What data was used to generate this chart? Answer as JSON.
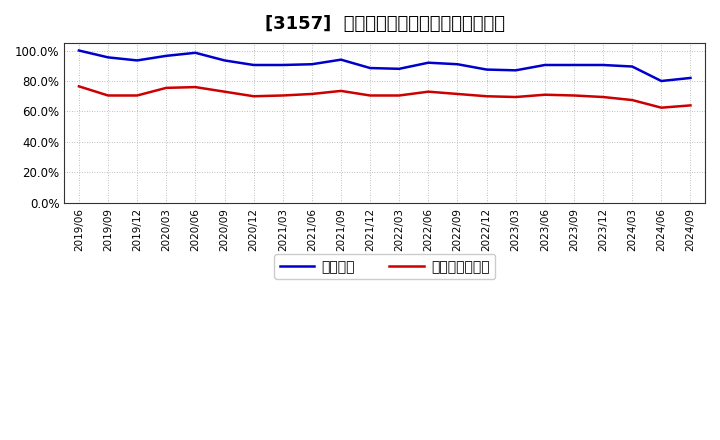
{
  "title": "[3157]  固定比率、固定長期適合率の推移",
  "x_labels": [
    "2019/06",
    "2019/09",
    "2019/12",
    "2020/03",
    "2020/06",
    "2020/09",
    "2020/12",
    "2021/03",
    "2021/06",
    "2021/09",
    "2021/12",
    "2022/03",
    "2022/06",
    "2022/09",
    "2022/12",
    "2023/03",
    "2023/06",
    "2023/09",
    "2023/12",
    "2024/03",
    "2024/06",
    "2024/09"
  ],
  "fixed_ratio": [
    100.0,
    95.5,
    93.5,
    96.5,
    98.5,
    93.5,
    90.5,
    90.5,
    91.0,
    94.0,
    88.5,
    88.0,
    92.0,
    91.0,
    87.5,
    87.0,
    90.5,
    90.5,
    90.5,
    89.5,
    80.0,
    82.0
  ],
  "fixed_long_ratio": [
    76.5,
    70.5,
    70.5,
    75.5,
    76.0,
    73.0,
    70.0,
    70.5,
    71.5,
    73.5,
    70.5,
    70.5,
    73.0,
    71.5,
    70.0,
    69.5,
    71.0,
    70.5,
    69.5,
    67.5,
    62.5,
    64.0
  ],
  "line_color_blue": "#0000cc",
  "line_color_red": "#cc0000",
  "legend_fixed": "固定比率",
  "legend_fixed_long": "固定長期適合率",
  "ylim": [
    0,
    105
  ],
  "yticks": [
    0,
    20,
    40,
    60,
    80,
    100
  ],
  "background_color": "#ffffff",
  "grid_color": "#aaaaaa",
  "title_fontsize": 13
}
